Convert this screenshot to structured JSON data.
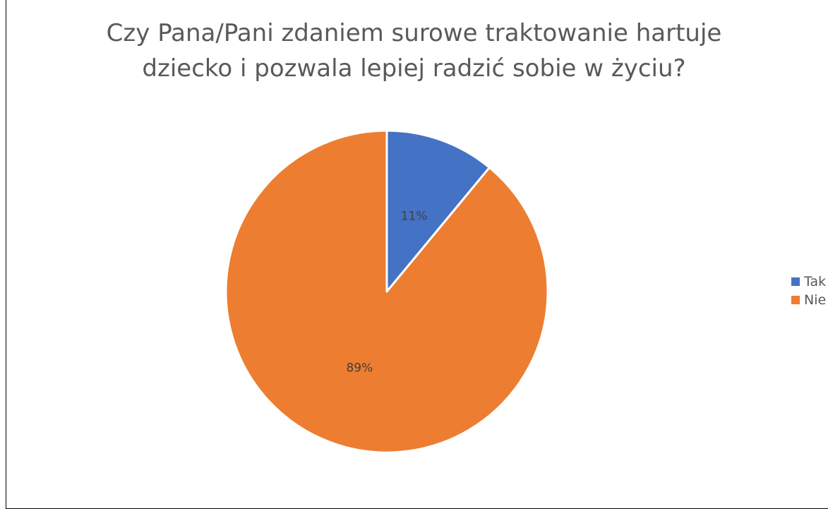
{
  "chart_data": {
    "type": "pie",
    "title_lines": [
      "Czy Pana/Pani zdaniem surowe traktowanie hartuje",
      "dziecko i pozwala lepiej radzić sobie w życiu?"
    ],
    "categories": [
      "Tak",
      "Nie"
    ],
    "values": [
      11,
      89
    ],
    "data_labels": [
      "11%",
      "89%"
    ],
    "colors": [
      "#4472C4",
      "#ED7D31"
    ],
    "legend_position": "right"
  }
}
